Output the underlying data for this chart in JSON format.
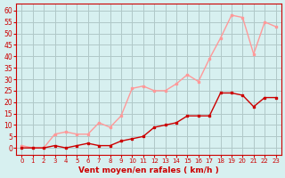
{
  "x": [
    0,
    1,
    2,
    3,
    4,
    5,
    6,
    7,
    8,
    9,
    10,
    11,
    12,
    13,
    14,
    15,
    16,
    17,
    18,
    19,
    20,
    21,
    22,
    23
  ],
  "wind_avg": [
    0,
    0,
    0,
    1,
    0,
    1,
    2,
    1,
    1,
    3,
    4,
    5,
    9,
    10,
    11,
    14,
    14,
    14,
    24,
    24,
    23,
    18,
    22,
    22
  ],
  "wind_gust": [
    1,
    0,
    0,
    6,
    7,
    6,
    6,
    11,
    9,
    14,
    26,
    27,
    25,
    25,
    28,
    32,
    29,
    39,
    48,
    58,
    57,
    41,
    55,
    53
  ],
  "bg_color": "#d7f0f0",
  "grid_color": "#b0c8c8",
  "avg_color": "#cc0000",
  "gust_color": "#ff9999",
  "xlabel": "Vent moyen/en rafales ( km/h )",
  "xlabel_color": "#cc0000",
  "yticks": [
    0,
    5,
    10,
    15,
    20,
    25,
    30,
    35,
    40,
    45,
    50,
    55,
    60
  ],
  "xticks": [
    0,
    1,
    2,
    3,
    4,
    5,
    6,
    7,
    8,
    9,
    10,
    11,
    12,
    13,
    14,
    15,
    16,
    17,
    18,
    19,
    20,
    21,
    22,
    23
  ],
  "ylim": [
    -3,
    63
  ],
  "xlim": [
    -0.5,
    23.5
  ]
}
